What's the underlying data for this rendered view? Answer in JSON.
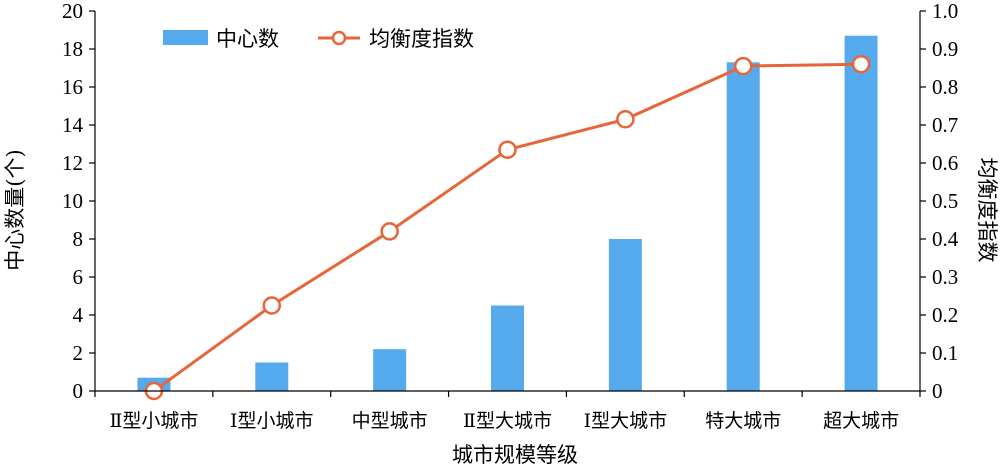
{
  "chart_data": {
    "type": "bar+line",
    "categories": [
      "Ⅱ型小城市",
      "Ⅰ型小城市",
      "中型城市",
      "Ⅱ型大城市",
      "Ⅰ型大城市",
      "特大城市",
      "超大城市"
    ],
    "series": [
      {
        "name": "中心数",
        "type": "bar",
        "axis": "left",
        "values": [
          0.7,
          1.5,
          2.2,
          4.5,
          8.0,
          17.3,
          18.7
        ],
        "color": "#55aaee"
      },
      {
        "name": "均衡度指数",
        "type": "line",
        "axis": "right",
        "values": [
          0.0,
          0.225,
          0.42,
          0.635,
          0.715,
          0.855,
          0.86
        ],
        "color": "#e8653a"
      }
    ],
    "xlabel": "城市规模等级",
    "ylabel": "中心数量(个)",
    "y2label": "均衡度指数",
    "ylim": [
      0,
      20
    ],
    "y2lim": [
      0,
      1.0
    ],
    "yticks": [
      "0",
      "2",
      "4",
      "6",
      "8",
      "10",
      "12",
      "14",
      "16",
      "18",
      "20"
    ],
    "y2ticks": [
      "0",
      "0.1",
      "0.2",
      "0.3",
      "0.4",
      "0.5",
      "0.6",
      "0.7",
      "0.8",
      "0.9",
      "1.0"
    ],
    "legend_position": "top-left",
    "grid": false
  }
}
